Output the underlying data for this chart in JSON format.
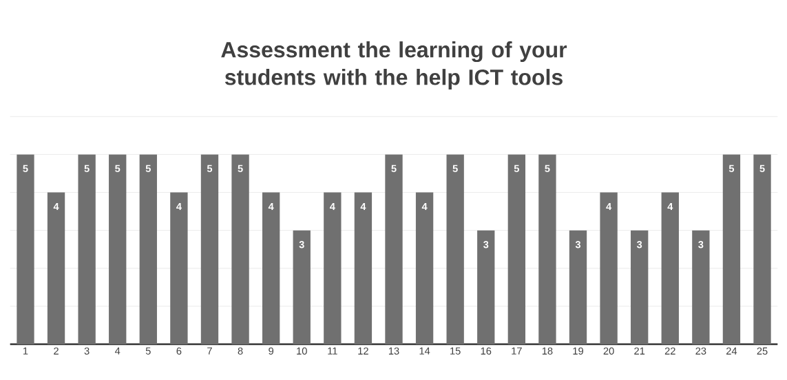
{
  "chart_data": {
    "type": "bar",
    "title": "Assessment the learning of your students with the help ICT tools",
    "categories": [
      "1",
      "2",
      "3",
      "4",
      "5",
      "6",
      "7",
      "8",
      "9",
      "10",
      "11",
      "12",
      "13",
      "14",
      "15",
      "16",
      "17",
      "18",
      "19",
      "20",
      "21",
      "22",
      "23",
      "24",
      "25"
    ],
    "values": [
      5,
      4,
      5,
      5,
      5,
      4,
      5,
      5,
      4,
      3,
      4,
      4,
      5,
      4,
      5,
      3,
      5,
      5,
      3,
      4,
      3,
      4,
      3,
      5,
      5
    ],
    "color": "#707070",
    "ylim": [
      0,
      6
    ],
    "yticks": [
      {
        "value": 0,
        "label": null
      },
      {
        "value": 1,
        "label": null
      },
      {
        "value": 2,
        "label": null
      },
      {
        "value": 3,
        "label": null
      },
      {
        "value": 4,
        "label": null
      },
      {
        "value": 5,
        "label": null
      },
      {
        "value": 6,
        "label": null
      }
    ],
    "grid": "y",
    "tick_labels": "x",
    "data_labels": true
  }
}
